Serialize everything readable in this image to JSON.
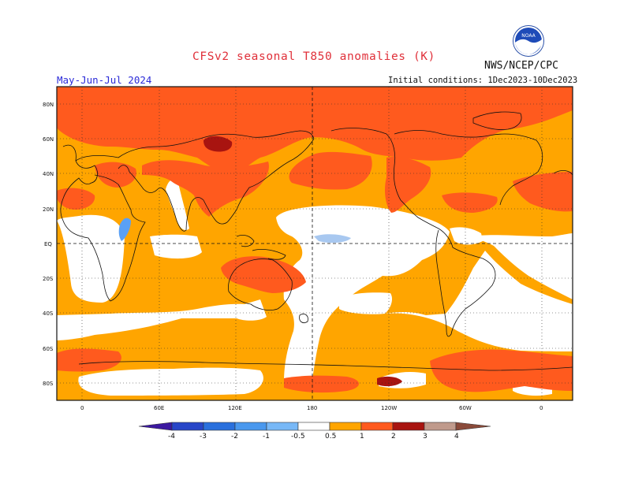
{
  "header": {
    "title": "CFSv2 seasonal T850 anomalies (K)",
    "agency": "NWS/NCEP/CPC",
    "season": "May-Jun-Jul 2024",
    "initial_conditions": "Initial conditions: 1Dec2023-10Dec2023",
    "logo_text": "NOAA"
  },
  "map": {
    "lat_labels": [
      "80N",
      "60N",
      "40N",
      "20N",
      "EQ",
      "20S",
      "40S",
      "60S",
      "80S"
    ],
    "lon_labels": [
      "0",
      "60E",
      "120E",
      "180",
      "120W",
      "60W",
      "0"
    ],
    "colors": {
      "ocean_white": "#ffffff",
      "positive_0_5_1": "#ffa500",
      "positive_1_2": "#ff5a1e",
      "positive_2_3": "#a81410",
      "negative_0_5_1": "#5aa0f5"
    }
  },
  "colorbar": {
    "labels": [
      "-4",
      "-3",
      "-2",
      "-1",
      "-0.5",
      "0.5",
      "1",
      "2",
      "3",
      "4"
    ],
    "colors": [
      "#3c19a0",
      "#2846c8",
      "#2a70dd",
      "#4a98ee",
      "#78b8f7",
      "#ffffff",
      "#ffa500",
      "#ff5a1e",
      "#a81410",
      "#c09a8c",
      "#8a4a3a"
    ]
  }
}
